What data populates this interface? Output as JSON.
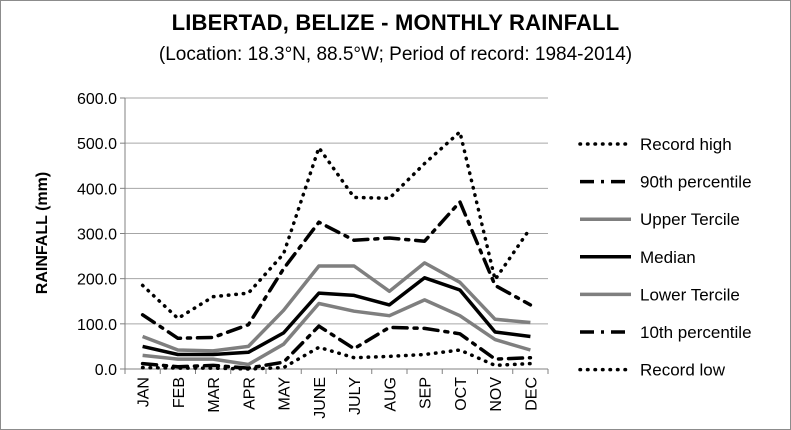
{
  "chart_data": {
    "type": "line",
    "title": "LIBERTAD, BELIZE - MONTHLY RAINFALL",
    "subtitle": "(Location: 18.3°N, 88.5°W; Period of record: 1984-2014)",
    "ylabel": "RAINFALL (mm)",
    "xlabel": "",
    "ylim": [
      0,
      600
    ],
    "ytick_labels": [
      "0.0",
      "100.0",
      "200.0",
      "300.0",
      "400.0",
      "500.0",
      "600.0"
    ],
    "grid": true,
    "legend_position": "right",
    "categories": [
      "JAN",
      "FEB",
      "MAR",
      "APR",
      "MAY",
      "JUNE",
      "JULY",
      "AUG",
      "SEP",
      "OCT",
      "NOV",
      "DEC"
    ],
    "series": [
      {
        "name": "Record high",
        "color": "#000000",
        "style": "dotted",
        "values": [
          185,
          112,
          160,
          168,
          255,
          490,
          380,
          378,
          455,
          525,
          198,
          312
        ]
      },
      {
        "name": "90th percentile",
        "color": "#000000",
        "style": "dashdot",
        "values": [
          120,
          68,
          70,
          98,
          222,
          325,
          285,
          290,
          283,
          370,
          185,
          142
        ]
      },
      {
        "name": "Upper Tercile",
        "color": "#7f7f7f",
        "style": "solid",
        "values": [
          72,
          42,
          40,
          50,
          130,
          228,
          228,
          172,
          235,
          192,
          110,
          103
        ]
      },
      {
        "name": "Median",
        "color": "#000000",
        "style": "solid",
        "values": [
          50,
          32,
          32,
          37,
          80,
          168,
          163,
          142,
          202,
          175,
          82,
          72
        ]
      },
      {
        "name": "Lower Tercile",
        "color": "#7f7f7f",
        "style": "solid",
        "values": [
          30,
          22,
          22,
          10,
          55,
          145,
          128,
          118,
          153,
          118,
          65,
          42
        ]
      },
      {
        "name": "10th percentile",
        "color": "#000000",
        "style": "dashdot",
        "values": [
          12,
          5,
          8,
          2,
          15,
          95,
          45,
          92,
          90,
          78,
          22,
          25
        ]
      },
      {
        "name": "Record low",
        "color": "#000000",
        "style": "dotted",
        "values": [
          3,
          2,
          2,
          0,
          3,
          48,
          25,
          28,
          32,
          42,
          8,
          12
        ]
      }
    ]
  }
}
